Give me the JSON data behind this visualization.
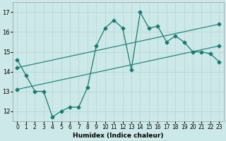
{
  "xlabel": "Humidex (Indice chaleur)",
  "bg_color": "#cce8e8",
  "line_color": "#1a7a6e",
  "grid_color": "#b8d8d8",
  "xlim": [
    -0.5,
    23.5
  ],
  "ylim": [
    11.5,
    17.5
  ],
  "xticks": [
    0,
    1,
    2,
    3,
    4,
    5,
    6,
    7,
    8,
    9,
    10,
    11,
    12,
    13,
    14,
    15,
    16,
    17,
    18,
    19,
    20,
    21,
    22,
    23
  ],
  "yticks": [
    12,
    13,
    14,
    15,
    16,
    17
  ],
  "line1_x": [
    0,
    1,
    2,
    3,
    4,
    5,
    6,
    7,
    8,
    9,
    10,
    11,
    12,
    13,
    14,
    15,
    16,
    17,
    18,
    19,
    20,
    21,
    22,
    23
  ],
  "line1_y": [
    14.6,
    13.8,
    13.0,
    13.0,
    11.7,
    12.0,
    12.2,
    12.2,
    13.2,
    15.3,
    16.2,
    16.6,
    16.2,
    14.1,
    17.0,
    16.2,
    16.3,
    15.5,
    15.8,
    15.5,
    15.0,
    15.0,
    14.9,
    14.5
  ],
  "line2_x": [
    0,
    23
  ],
  "line2_y": [
    13.1,
    15.3
  ],
  "line3_x": [
    0,
    23
  ],
  "line3_y": [
    14.2,
    16.4
  ],
  "marker_size": 2.5,
  "linewidth": 0.9,
  "straight_linewidth": 0.8
}
